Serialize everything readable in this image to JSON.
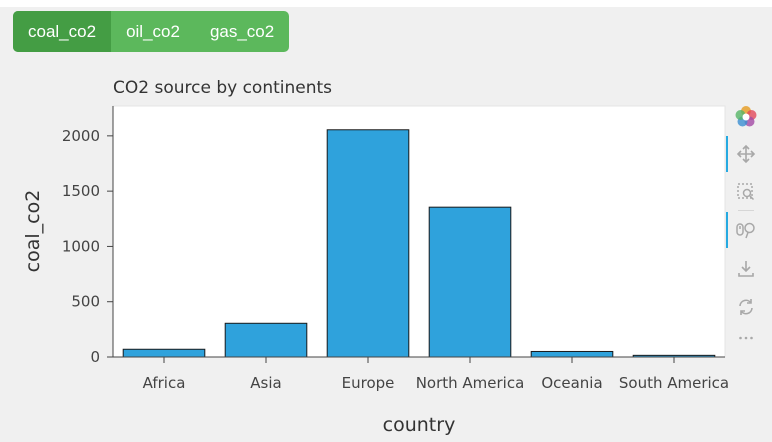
{
  "tabs": [
    {
      "label": "coal_co2",
      "active": true
    },
    {
      "label": "oil_co2",
      "active": false
    },
    {
      "label": "gas_co2",
      "active": false
    }
  ],
  "toolbar": {
    "tools": [
      {
        "icon": "bokeh-logo-icon"
      },
      {
        "icon": "pan-icon",
        "active": true
      },
      {
        "icon": "box-zoom-icon"
      },
      {
        "icon": "wheel-zoom-icon",
        "active": true
      },
      {
        "icon": "save-icon"
      },
      {
        "icon": "reset-icon"
      },
      {
        "icon": "more-icon"
      }
    ]
  },
  "colors": {
    "bar_fill": "#2fa2dc",
    "bar_stroke": "#1a1a1a",
    "tab_bg": "#5cb85c",
    "tab_active_bg": "#449d44"
  },
  "chart_data": {
    "type": "bar",
    "title": "CO2 source by continents",
    "xlabel": "country",
    "ylabel": "coal_co2",
    "categories": [
      "Africa",
      "Asia",
      "Europe",
      "North America",
      "Oceania",
      "South America"
    ],
    "values": [
      70,
      305,
      2055,
      1355,
      50,
      15
    ],
    "ylim": [
      0,
      2270
    ],
    "yticks": [
      0,
      500,
      1000,
      1500,
      2000
    ],
    "grid": false
  }
}
